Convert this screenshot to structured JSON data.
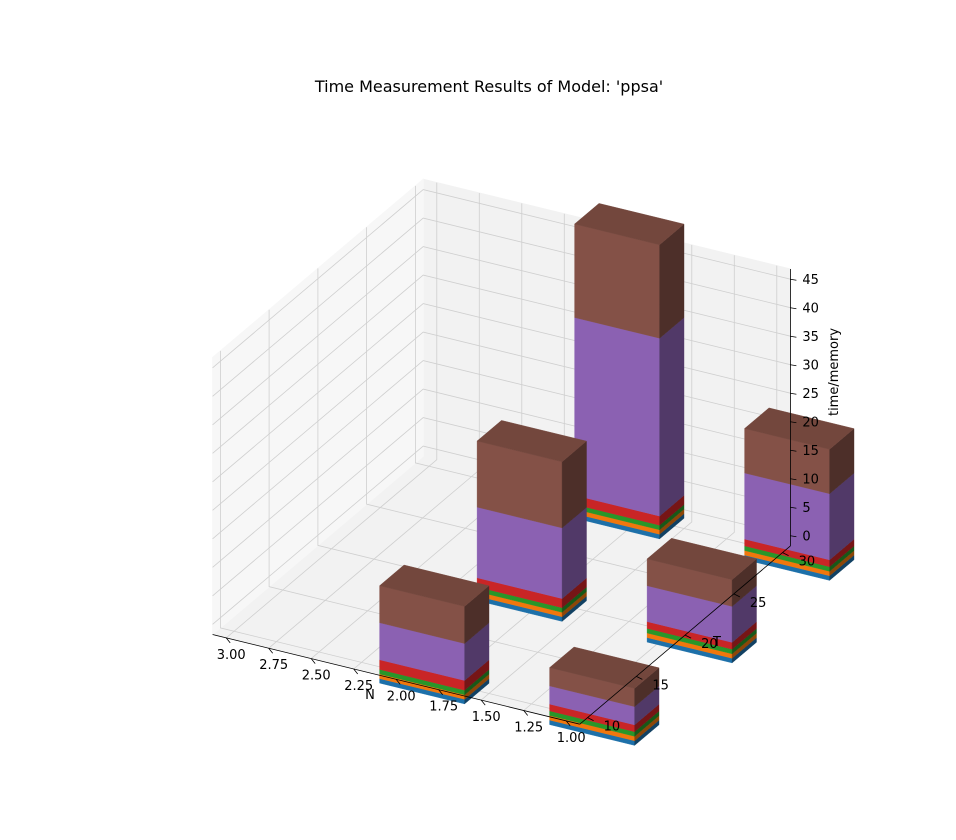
{
  "chart_data": {
    "type": "bar",
    "subtype": "3d-stacked-bar",
    "title": "Time Measurement Results of Model: 'ppsa'",
    "xlabel": "N",
    "ylabel": "T",
    "zlabel": "time/memory",
    "x_ticks": [
      "1.00",
      "1.25",
      "1.50",
      "1.75",
      "2.00",
      "2.25",
      "2.50",
      "2.75",
      "3.00"
    ],
    "y_ticks": [
      "10",
      "15",
      "20",
      "25",
      "30"
    ],
    "z_ticks": [
      "0",
      "5",
      "10",
      "15",
      "20",
      "25",
      "30",
      "35",
      "40",
      "45"
    ],
    "xlim": [
      1,
      3
    ],
    "ylim": [
      10,
      30
    ],
    "zlim": [
      0,
      45
    ],
    "grid": true,
    "layer_colors": [
      "#1f77b4",
      "#ff7f0e",
      "#2ca02c",
      "#d62728",
      "#9467bd",
      "#8c564b"
    ],
    "bars": [
      {
        "N": 1,
        "T": 10,
        "layers": [
          0.8,
          0.8,
          0.8,
          1.2,
          3.2,
          3.2
        ]
      },
      {
        "N": 2,
        "T": 10,
        "layers": [
          0.8,
          0.8,
          0.8,
          1.7,
          6.5,
          6.5
        ]
      },
      {
        "N": 1,
        "T": 20,
        "layers": [
          0.8,
          0.8,
          0.8,
          1.2,
          6.3,
          4.7
        ]
      },
      {
        "N": 2,
        "T": 20,
        "layers": [
          0.8,
          0.8,
          0.8,
          1.6,
          12.4,
          11.6
        ]
      },
      {
        "N": 1,
        "T": 30,
        "layers": [
          0.8,
          0.8,
          0.8,
          1.2,
          11.6,
          7.8
        ]
      },
      {
        "N": 2,
        "T": 30,
        "layers": [
          0.8,
          0.8,
          0.8,
          1.6,
          31.2,
          16.4
        ]
      }
    ]
  }
}
